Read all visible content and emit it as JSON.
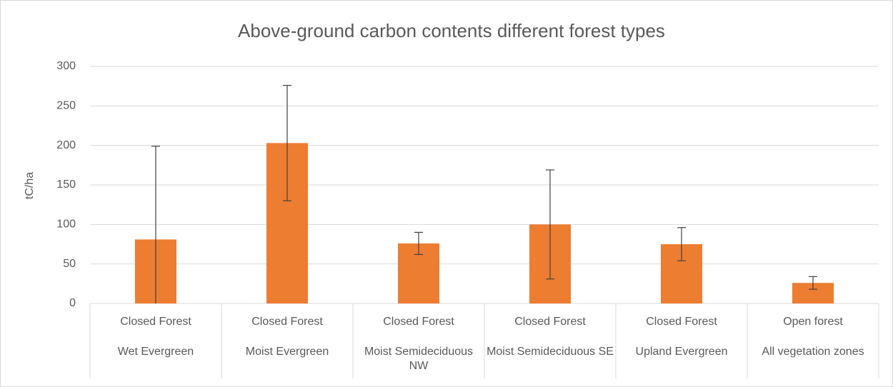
{
  "chart_data": {
    "type": "bar",
    "title": "Above-ground carbon contents different forest types",
    "y_label": "tC/ha",
    "categories": [
      [
        "Closed Forest",
        "Wet Evergreen"
      ],
      [
        "Closed Forest",
        "Moist Evergreen"
      ],
      [
        "Closed Forest",
        "Moist Semideciduous NW"
      ],
      [
        "Closed Forest",
        "Moist Semideciduous SE"
      ],
      [
        "Closed Forest",
        "Upland Evergreen"
      ],
      [
        "Open forest",
        "All vegetation zones"
      ]
    ],
    "values": [
      81,
      203,
      76,
      100,
      75,
      26
    ],
    "errors": [
      118,
      73,
      14,
      69,
      21,
      8
    ],
    "color": "#ed7d31",
    "ylim": [
      0,
      300
    ],
    "yticks": [
      0,
      50,
      100,
      150,
      200,
      250,
      300
    ],
    "grid": true
  }
}
